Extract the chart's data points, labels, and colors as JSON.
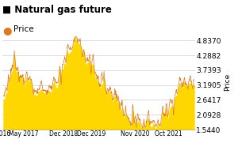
{
  "title": "Natural gas future",
  "legend_label": "Price",
  "ylabel": "Price",
  "yticks": [
    1.544,
    2.0928,
    2.6417,
    3.1905,
    3.7393,
    4.2882,
    4.837
  ],
  "ytick_labels": [
    "1.5440",
    "2.0928",
    "2.6417",
    "3.1905",
    "3.7393",
    "4.2882",
    "4.8370"
  ],
  "ylim": [
    1.544,
    5.0
  ],
  "fill_color": "#FFD700",
  "line_color": "#E07820",
  "background_color": "#FFFFFF",
  "grid_color": "#CCCCCC",
  "title_fontsize": 8.5,
  "axis_fontsize": 6.5,
  "legend_fontsize": 7.5,
  "key_x": [
    0,
    8,
    14,
    22,
    35,
    45,
    60,
    75,
    95,
    110,
    120,
    130,
    140,
    150,
    160
  ],
  "key_y": [
    2.55,
    3.85,
    3.3,
    3.25,
    2.9,
    3.15,
    4.85,
    3.6,
    2.55,
    1.58,
    1.65,
    1.75,
    2.2,
    3.35,
    3.0
  ]
}
